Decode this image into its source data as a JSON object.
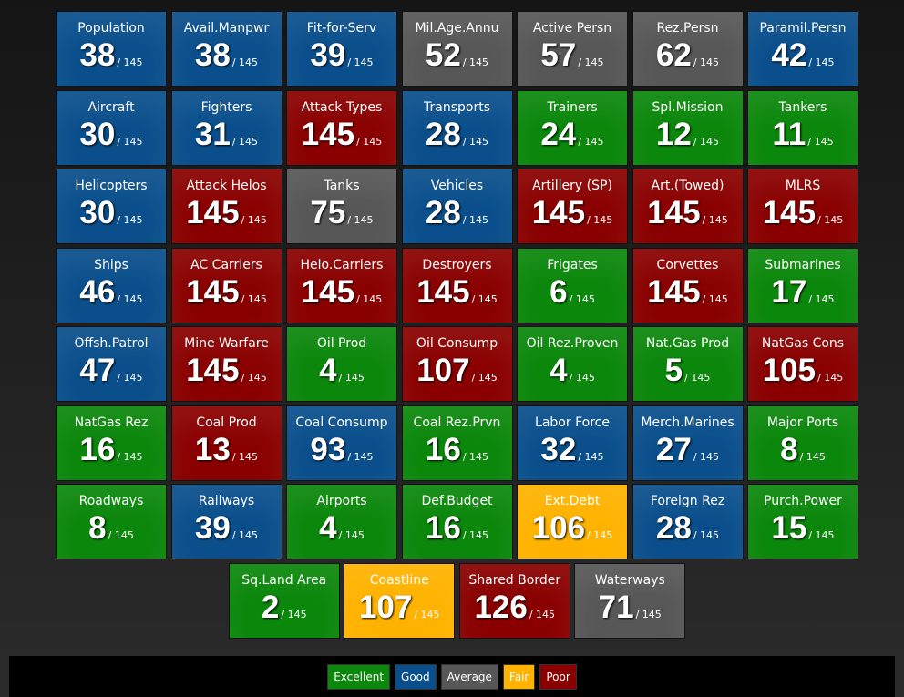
{
  "total": "/ 145",
  "legend": [
    {
      "label": "Excellent",
      "color": "#0b870b"
    },
    {
      "label": "Good",
      "color": "#0a4f8c"
    },
    {
      "label": "Average",
      "color": "#575757"
    },
    {
      "label": "Fair",
      "color": "#ffb300"
    },
    {
      "label": "Poor",
      "color": "#8a0000"
    }
  ],
  "rows": [
    [
      {
        "label": "Population",
        "rank": 38,
        "rating": "Good"
      },
      {
        "label": "Avail.Manpwr",
        "rank": 38,
        "rating": "Good"
      },
      {
        "label": "Fit-for-Serv",
        "rank": 39,
        "rating": "Good"
      },
      {
        "label": "Mil.Age.Annu",
        "rank": 52,
        "rating": "Average"
      },
      {
        "label": "Active Persn",
        "rank": 57,
        "rating": "Average"
      },
      {
        "label": "Rez.Persn",
        "rank": 62,
        "rating": "Average"
      },
      {
        "label": "Paramil.Persn",
        "rank": 42,
        "rating": "Good"
      }
    ],
    [
      {
        "label": "Aircraft",
        "rank": 30,
        "rating": "Good"
      },
      {
        "label": "Fighters",
        "rank": 31,
        "rating": "Good"
      },
      {
        "label": "Attack Types",
        "rank": 145,
        "rating": "Poor"
      },
      {
        "label": "Transports",
        "rank": 28,
        "rating": "Good"
      },
      {
        "label": "Trainers",
        "rank": 24,
        "rating": "Excellent"
      },
      {
        "label": "Spl.Mission",
        "rank": 12,
        "rating": "Excellent"
      },
      {
        "label": "Tankers",
        "rank": 11,
        "rating": "Excellent"
      }
    ],
    [
      {
        "label": "Helicopters",
        "rank": 30,
        "rating": "Good"
      },
      {
        "label": "Attack Helos",
        "rank": 145,
        "rating": "Poor"
      },
      {
        "label": "Tanks",
        "rank": 75,
        "rating": "Average"
      },
      {
        "label": "Vehicles",
        "rank": 28,
        "rating": "Good"
      },
      {
        "label": "Artillery (SP)",
        "rank": 145,
        "rating": "Poor"
      },
      {
        "label": "Art.(Towed)",
        "rank": 145,
        "rating": "Poor"
      },
      {
        "label": "MLRS",
        "rank": 145,
        "rating": "Poor"
      }
    ],
    [
      {
        "label": "Ships",
        "rank": 46,
        "rating": "Good"
      },
      {
        "label": "AC Carriers",
        "rank": 145,
        "rating": "Poor"
      },
      {
        "label": "Helo.Carriers",
        "rank": 145,
        "rating": "Poor"
      },
      {
        "label": "Destroyers",
        "rank": 145,
        "rating": "Poor"
      },
      {
        "label": "Frigates",
        "rank": 6,
        "rating": "Excellent"
      },
      {
        "label": "Corvettes",
        "rank": 145,
        "rating": "Poor"
      },
      {
        "label": "Submarines",
        "rank": 17,
        "rating": "Excellent"
      }
    ],
    [
      {
        "label": "Offsh.Patrol",
        "rank": 47,
        "rating": "Good"
      },
      {
        "label": "Mine Warfare",
        "rank": 145,
        "rating": "Poor"
      },
      {
        "label": "Oil Prod",
        "rank": 4,
        "rating": "Excellent"
      },
      {
        "label": "Oil Consump",
        "rank": 107,
        "rating": "Poor"
      },
      {
        "label": "Oil Rez.Proven",
        "rank": 4,
        "rating": "Excellent"
      },
      {
        "label": "Nat.Gas Prod",
        "rank": 5,
        "rating": "Excellent"
      },
      {
        "label": "NatGas Cons",
        "rank": 105,
        "rating": "Poor"
      }
    ],
    [
      {
        "label": "NatGas Rez",
        "rank": 16,
        "rating": "Excellent"
      },
      {
        "label": "Coal Prod",
        "rank": 13,
        "rating": "Poor"
      },
      {
        "label": "Coal Consump",
        "rank": 93,
        "rating": "Good"
      },
      {
        "label": "Coal Rez.Prvn",
        "rank": 16,
        "rating": "Excellent"
      },
      {
        "label": "Labor Force",
        "rank": 32,
        "rating": "Good"
      },
      {
        "label": "Merch.Marines",
        "rank": 27,
        "rating": "Good"
      },
      {
        "label": "Major Ports",
        "rank": 8,
        "rating": "Excellent"
      }
    ],
    [
      {
        "label": "Roadways",
        "rank": 8,
        "rating": "Excellent"
      },
      {
        "label": "Railways",
        "rank": 39,
        "rating": "Good"
      },
      {
        "label": "Airports",
        "rank": 4,
        "rating": "Excellent"
      },
      {
        "label": "Def.Budget",
        "rank": 16,
        "rating": "Excellent"
      },
      {
        "label": "Ext.Debt",
        "rank": 106,
        "rating": "Fair"
      },
      {
        "label": "Foreign Rez",
        "rank": 28,
        "rating": "Good"
      },
      {
        "label": "Purch.Power",
        "rank": 15,
        "rating": "Excellent"
      }
    ],
    [
      {
        "label": "Sq.Land Area",
        "rank": 2,
        "rating": "Excellent"
      },
      {
        "label": "Coastline",
        "rank": 107,
        "rating": "Fair"
      },
      {
        "label": "Shared Border",
        "rank": 126,
        "rating": "Poor"
      },
      {
        "label": "Waterways",
        "rank": 71,
        "rating": "Average"
      }
    ]
  ]
}
